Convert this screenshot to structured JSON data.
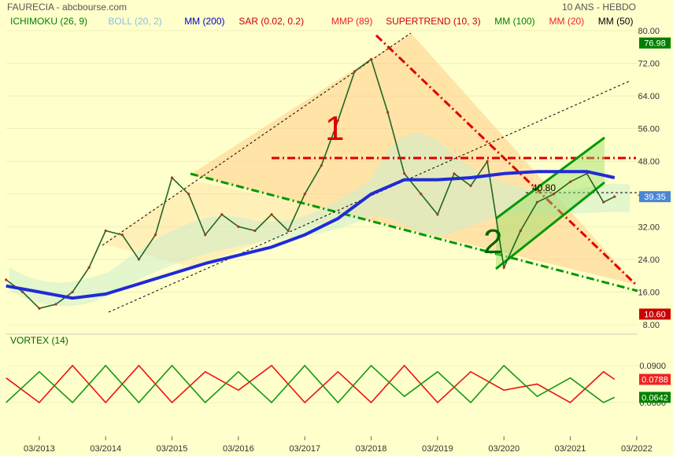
{
  "header": {
    "title": "FAURECIA - abcbourse.com",
    "period": "10 ANS - HEBDO"
  },
  "legend": [
    {
      "label": "ICHIMOKU (26, 9)",
      "color": "#008000"
    },
    {
      "label": "BOLL (20, 2)",
      "color": "#87bfe8"
    },
    {
      "label": "MM (200)",
      "color": "#0000cc"
    },
    {
      "label": "SAR (0.02, 0.2)",
      "color": "#cc0000"
    },
    {
      "label": "MMP (89)",
      "color": "#ee2222"
    },
    {
      "label": "SUPERTREND (10, 3)",
      "color": "#cc0000"
    },
    {
      "label": "MM (100)",
      "color": "#008000"
    },
    {
      "label": "MM (20)",
      "color": "#ee2222"
    },
    {
      "label": "MM (50)",
      "color": "#000000"
    }
  ],
  "annotations": {
    "wave1": "1",
    "wave2": "2",
    "level": "40.80"
  },
  "price_badges": [
    {
      "value": "76.98",
      "price": 76.98,
      "color": "#008000"
    },
    {
      "value": "39.35",
      "price": 39.35,
      "color": "#4a86d6"
    },
    {
      "value": "10.60",
      "price": 10.6,
      "color": "#cc0000"
    }
  ],
  "vortex": {
    "title": "VORTEX (14)",
    "ticks": [
      "0.0900",
      "0.0600"
    ],
    "badges": [
      {
        "value": "0.0788",
        "color": "#ee2222"
      },
      {
        "value": "0.0642",
        "color": "#008000"
      }
    ]
  },
  "chart_data": [
    {
      "type": "line",
      "title": "FAURECIA",
      "x_ticks": [
        "03/2013",
        "03/2014",
        "03/2015",
        "03/2016",
        "03/2017",
        "03/2018",
        "03/2019",
        "03/2020",
        "03/2021",
        "03/2022"
      ],
      "y_ticks": [
        "80.00",
        "72.00",
        "64.00",
        "56.00",
        "48.00",
        "40.00",
        "32.00",
        "24.00",
        "16.00",
        "8.00"
      ],
      "ylim": [
        8,
        80
      ],
      "series": [
        {
          "name": "",
          "x": [
            "2012-09",
            "2012-12",
            "2013-03",
            "2013-06",
            "2013-09",
            "2013-12",
            "2014-03",
            "2014-06",
            "2014-09",
            "2014-12",
            "2015-03",
            "2015-06",
            "2015-09",
            "2015-12",
            "2016-03",
            "2016-06",
            "2016-09",
            "2016-12",
            "2017-03",
            "2017-06",
            "2017-09",
            "2017-12",
            "2018-03",
            "2018-06",
            "2018-09",
            "2018-12",
            "2019-03",
            "2019-06",
            "2019-09",
            "2019-12",
            "2020-03",
            "2020-06",
            "2020-09",
            "2020-12",
            "2021-03",
            "2021-06",
            "2021-09",
            "2021-11"
          ],
          "values": [
            19,
            16,
            12,
            13,
            16,
            22,
            31,
            30,
            24,
            30,
            44,
            40,
            30,
            35,
            32,
            31,
            35,
            31,
            40,
            47,
            58,
            70,
            73,
            60,
            45,
            40,
            35,
            45,
            42,
            48,
            22,
            31,
            38,
            40,
            43,
            45,
            38,
            39.35
          ]
        },
        {
          "name": "MM (200)",
          "x": [
            "2012-09",
            "2013-03",
            "2013-09",
            "2014-03",
            "2014-09",
            "2015-03",
            "2015-09",
            "2016-03",
            "2016-09",
            "2017-03",
            "2017-09",
            "2018-03",
            "2018-09",
            "2019-03",
            "2019-09",
            "2020-03",
            "2020-09",
            "2021-03",
            "2021-06",
            "2021-11"
          ],
          "values": [
            17.5,
            16,
            14.5,
            15.5,
            18,
            20.5,
            23,
            25,
            27,
            30,
            34,
            40,
            43.5,
            43.5,
            44,
            45,
            45.5,
            45.5,
            45.5,
            44
          ]
        }
      ]
    },
    {
      "type": "line",
      "title": "VORTEX (14)",
      "y_ticks": [
        "0.0900",
        "0.0600"
      ],
      "series": [
        {
          "name": "",
          "x": [
            "2012-09",
            "2013-03",
            "2013-09",
            "2014-03",
            "2014-09",
            "2015-03",
            "2015-09",
            "2016-03",
            "2016-09",
            "2017-03",
            "2017-09",
            "2018-03",
            "2018-09",
            "2019-03",
            "2019-09",
            "2020-03",
            "2020-09",
            "2021-03",
            "2021-09",
            "2021-11"
          ],
          "values": [
            0.08,
            0.06,
            0.09,
            0.06,
            0.09,
            0.06,
            0.085,
            0.07,
            0.09,
            0.06,
            0.085,
            0.06,
            0.09,
            0.06,
            0.085,
            0.07,
            0.075,
            0.06,
            0.085,
            0.0788
          ]
        },
        {
          "name": "",
          "x": [
            "2012-09",
            "2013-03",
            "2013-09",
            "2014-03",
            "2014-09",
            "2015-03",
            "2015-09",
            "2016-03",
            "2016-09",
            "2017-03",
            "2017-09",
            "2018-03",
            "2018-09",
            "2019-03",
            "2019-09",
            "2020-03",
            "2020-09",
            "2021-03",
            "2021-09",
            "2021-11"
          ],
          "values": [
            0.06,
            0.085,
            0.06,
            0.09,
            0.06,
            0.09,
            0.06,
            0.085,
            0.06,
            0.09,
            0.06,
            0.09,
            0.065,
            0.085,
            0.06,
            0.09,
            0.065,
            0.08,
            0.06,
            0.0642
          ]
        }
      ]
    }
  ]
}
